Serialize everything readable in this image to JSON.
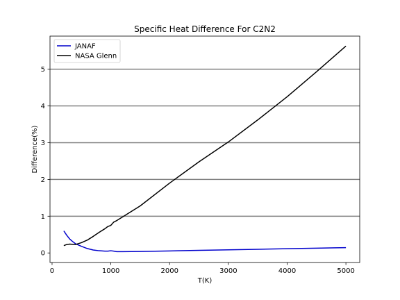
{
  "chart_data": {
    "type": "line",
    "title": "Specific Heat Difference For C2N2",
    "xlabel": "T(K)",
    "ylabel": "Difference(%)",
    "xlim": [
      -35,
      5235
    ],
    "ylim": [
      -0.26,
      5.9
    ],
    "xticks": [
      0,
      1000,
      2000,
      3000,
      4000,
      5000
    ],
    "yticks": [
      0,
      1,
      2,
      3,
      4,
      5
    ],
    "grid": "horizontal",
    "legend_position": "top-left",
    "series": [
      {
        "name": "JANAF",
        "color": "#0000cc",
        "x": [
          200,
          250,
          300,
          350,
          400,
          500,
          600,
          700,
          800,
          900,
          950,
          1000,
          1050,
          1100,
          1200,
          1500,
          2000,
          2500,
          3000,
          3500,
          4000,
          4500,
          4800,
          5000
        ],
        "y": [
          0.6,
          0.48,
          0.38,
          0.31,
          0.25,
          0.18,
          0.12,
          0.08,
          0.06,
          0.05,
          0.05,
          0.06,
          0.05,
          0.035,
          0.035,
          0.04,
          0.055,
          0.07,
          0.085,
          0.1,
          0.115,
          0.13,
          0.14,
          0.145
        ]
      },
      {
        "name": "NASA Glenn",
        "color": "#000000",
        "x": [
          200,
          250,
          300,
          400,
          500,
          600,
          700,
          800,
          900,
          950,
          1000,
          1050,
          1100,
          1200,
          1500,
          2000,
          2500,
          3000,
          3500,
          4000,
          4500,
          5000
        ],
        "y": [
          0.2,
          0.23,
          0.24,
          0.23,
          0.28,
          0.35,
          0.45,
          0.56,
          0.66,
          0.72,
          0.75,
          0.84,
          0.88,
          0.98,
          1.28,
          1.9,
          2.48,
          3.02,
          3.62,
          4.25,
          4.93,
          5.63
        ]
      }
    ]
  }
}
